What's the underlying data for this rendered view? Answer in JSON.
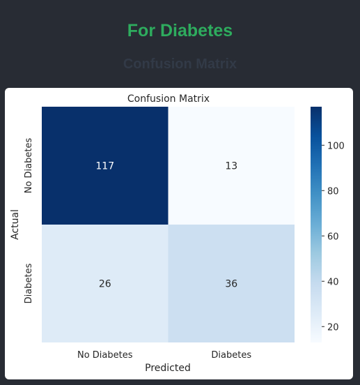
{
  "header": {
    "title": "For Diabetes",
    "subtitle": "Confusion Matrix",
    "title_color": "#2eac5e",
    "subtitle_color": "#323a47"
  },
  "chart_data": {
    "type": "heatmap",
    "title": "Confusion Matrix",
    "xlabel": "Predicted",
    "ylabel": "Actual",
    "x_categories": [
      "No Diabetes",
      "Diabetes"
    ],
    "y_categories": [
      "No Diabetes",
      "Diabetes"
    ],
    "values": [
      [
        117,
        13
      ],
      [
        26,
        36
      ]
    ],
    "colormap": "Blues",
    "colorbar": {
      "ticks": [
        "20",
        "40",
        "60",
        "80",
        "100"
      ],
      "range": [
        13,
        117
      ]
    },
    "grid": false,
    "legend": "colorbar-right"
  }
}
